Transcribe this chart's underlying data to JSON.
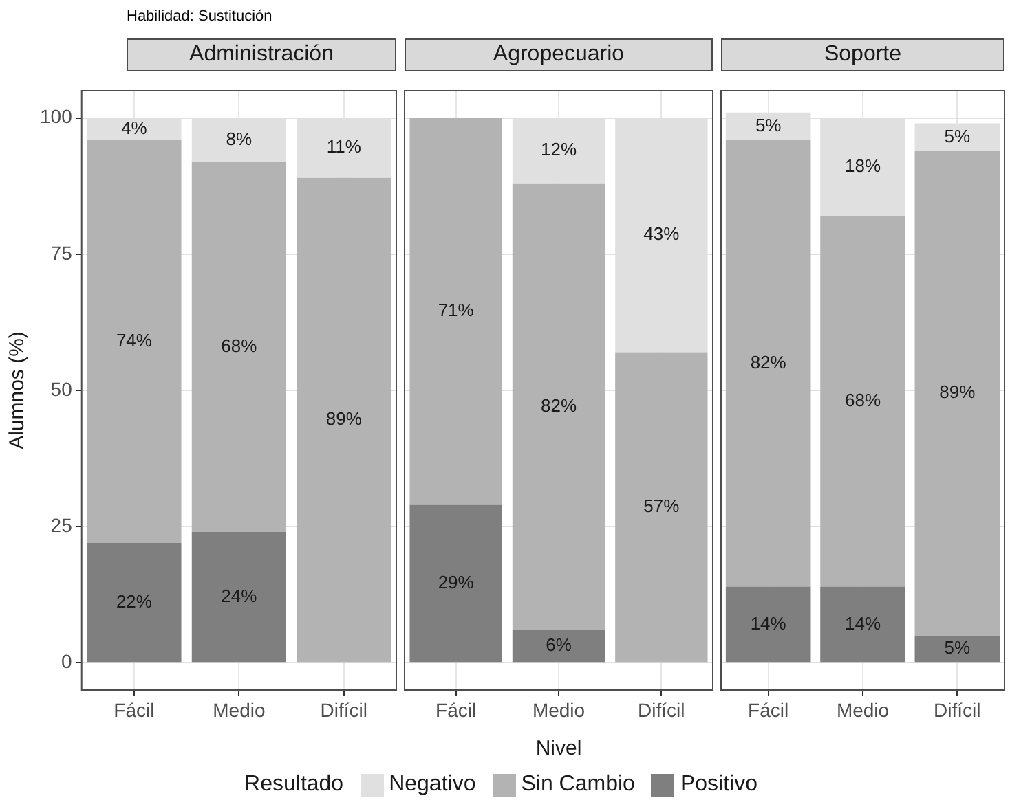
{
  "chart_data": [
    {
      "type": "bar",
      "title": "Administración",
      "ylabel": "Alumnos (%)",
      "annotations": [
        "Habilidad: Sustitución"
      ],
      "legend": "bottom",
      "legend_title": "Resultado",
      "categories": [
        "Fácil",
        "Medio",
        "Difícil"
      ],
      "stacked": true,
      "ylim": [
        -5,
        105
      ],
      "yticks": [
        0,
        25,
        50,
        75,
        100
      ],
      "grid": true,
      "series": [
        {
          "name": "Positivo",
          "color": "#7f7f7f",
          "values": [
            22,
            24,
            0
          ],
          "value_labels": [
            "22%",
            "24%",
            null
          ]
        },
        {
          "name": "Sin Cambio",
          "color": "#b3b3b3",
          "values": [
            74,
            68,
            89
          ],
          "value_labels": [
            "74%",
            "68%",
            "89%"
          ]
        },
        {
          "name": "Negativo",
          "color": "#e0e0e0",
          "values": [
            4,
            8,
            11
          ],
          "value_labels": [
            "4%",
            "8%",
            "11%"
          ]
        }
      ]
    },
    {
      "type": "bar",
      "title": "Agropecuario",
      "xlabel": "Nivel",
      "legend": "bottom",
      "tick_labels": "x",
      "categories": [
        "Fácil",
        "Medio",
        "Difícil"
      ],
      "stacked": true,
      "ylim": [
        -5,
        105
      ],
      "yticks": [
        0,
        25,
        50,
        75,
        100
      ],
      "grid": true,
      "series": [
        {
          "name": "Positivo",
          "color": "#7f7f7f",
          "values": [
            29,
            6,
            0
          ],
          "value_labels": [
            "29%",
            "6%",
            null
          ]
        },
        {
          "name": "Sin Cambio",
          "color": "#b3b3b3",
          "values": [
            71,
            82,
            57
          ],
          "value_labels": [
            "71%",
            "82%",
            "57%"
          ]
        },
        {
          "name": "Negativo",
          "color": "#e0e0e0",
          "values": [
            0,
            12,
            43
          ],
          "value_labels": [
            null,
            "12%",
            "43%"
          ]
        }
      ]
    },
    {
      "type": "bar",
      "title": "Soporte",
      "legend": "bottom",
      "tick_labels": "x",
      "categories": [
        "Fácil",
        "Medio",
        "Difícil"
      ],
      "stacked": true,
      "ylim": [
        -5,
        105
      ],
      "yticks": [
        0,
        25,
        50,
        75,
        100
      ],
      "grid": true,
      "series": [
        {
          "name": "Positivo",
          "color": "#7f7f7f",
          "values": [
            14,
            14,
            5
          ],
          "value_labels": [
            "14%",
            "14%",
            "5%"
          ]
        },
        {
          "name": "Sin Cambio",
          "color": "#b3b3b3",
          "values": [
            82,
            68,
            89
          ],
          "value_labels": [
            "82%",
            "68%",
            "89%"
          ]
        },
        {
          "name": "Negativo",
          "color": "#e0e0e0",
          "values": [
            5,
            18,
            5
          ],
          "value_labels": [
            "5%",
            "18%",
            "5%"
          ]
        }
      ]
    }
  ]
}
